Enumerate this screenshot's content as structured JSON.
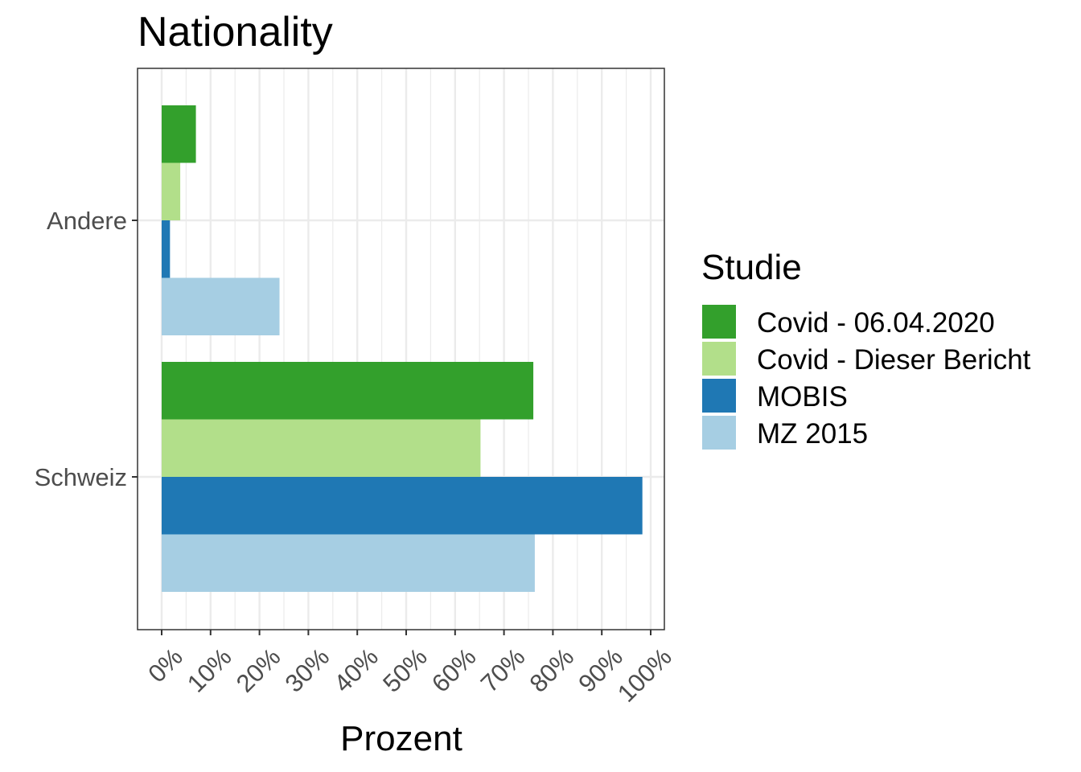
{
  "chart_data": {
    "type": "bar",
    "orientation": "horizontal",
    "title": "Nationality",
    "xlabel": "Prozent",
    "ylabel": "",
    "categories": [
      "Andere",
      "Schweiz"
    ],
    "x_ticks": [
      "0%",
      "10%",
      "20%",
      "30%",
      "40%",
      "50%",
      "60%",
      "70%",
      "80%",
      "90%",
      "100%"
    ],
    "xlim": [
      -0.05,
      1.03
    ],
    "grid": true,
    "legend": {
      "title": "Studie",
      "position": "right"
    },
    "series": [
      {
        "name": "Covid - 06.04.2020",
        "color": "#33a02c",
        "values": [
          0.07,
          0.76
        ]
      },
      {
        "name": "Covid - Dieser Bericht",
        "color": "#b2df8a",
        "values": [
          0.038,
          0.652
        ]
      },
      {
        "name": "MOBIS",
        "color": "#1f78b4",
        "values": [
          0.017,
          0.983
        ]
      },
      {
        "name": "MZ 2015",
        "color": "#a6cee3",
        "values": [
          0.241,
          0.763
        ]
      }
    ]
  }
}
